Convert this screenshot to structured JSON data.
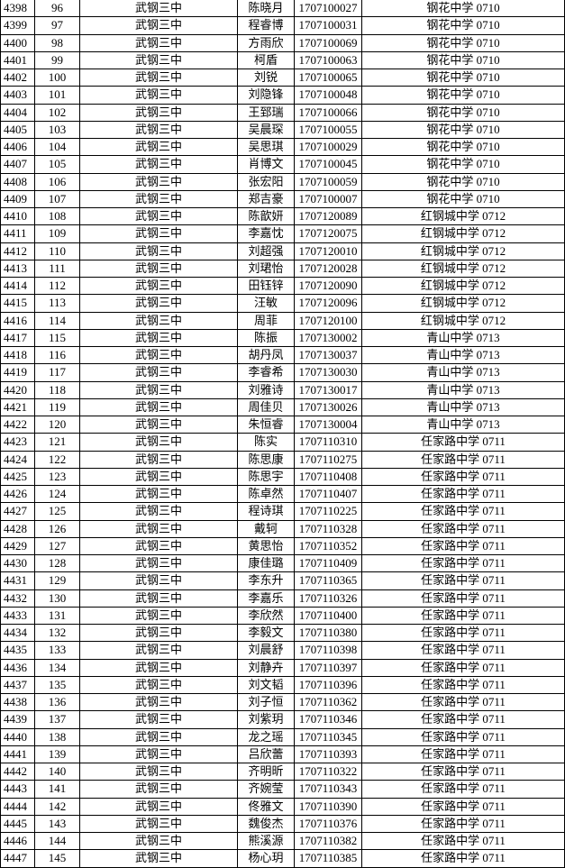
{
  "table": {
    "rows": [
      [
        "4398",
        "96",
        "武钢三中",
        "陈晓月",
        "1707100027",
        "钢花中学 0710"
      ],
      [
        "4399",
        "97",
        "武钢三中",
        "程睿博",
        "1707100031",
        "钢花中学 0710"
      ],
      [
        "4400",
        "98",
        "武钢三中",
        "方雨欣",
        "1707100069",
        "钢花中学 0710"
      ],
      [
        "4401",
        "99",
        "武钢三中",
        "柯盾",
        "1707100063",
        "钢花中学 0710"
      ],
      [
        "4402",
        "100",
        "武钢三中",
        "刘锐",
        "1707100065",
        "钢花中学 0710"
      ],
      [
        "4403",
        "101",
        "武钢三中",
        "刘隐锋",
        "1707100048",
        "钢花中学 0710"
      ],
      [
        "4404",
        "102",
        "武钢三中",
        "王郅瑞",
        "1707100066",
        "钢花中学 0710"
      ],
      [
        "4405",
        "103",
        "武钢三中",
        "吴晨琛",
        "1707100055",
        "钢花中学 0710"
      ],
      [
        "4406",
        "104",
        "武钢三中",
        "吴思琪",
        "1707100029",
        "钢花中学 0710"
      ],
      [
        "4407",
        "105",
        "武钢三中",
        "肖博文",
        "1707100045",
        "钢花中学 0710"
      ],
      [
        "4408",
        "106",
        "武钢三中",
        "张宏阳",
        "1707100059",
        "钢花中学 0710"
      ],
      [
        "4409",
        "107",
        "武钢三中",
        "郑吉豪",
        "1707100007",
        "钢花中学 0710"
      ],
      [
        "4410",
        "108",
        "武钢三中",
        "陈歆妍",
        "1707120089",
        "红钢城中学 0712"
      ],
      [
        "4411",
        "109",
        "武钢三中",
        "李嘉忱",
        "1707120075",
        "红钢城中学 0712"
      ],
      [
        "4412",
        "110",
        "武钢三中",
        "刘超强",
        "1707120010",
        "红钢城中学 0712"
      ],
      [
        "4413",
        "111",
        "武钢三中",
        "刘珺怡",
        "1707120028",
        "红钢城中学 0712"
      ],
      [
        "4414",
        "112",
        "武钢三中",
        "田钰锌",
        "1707120090",
        "红钢城中学 0712"
      ],
      [
        "4415",
        "113",
        "武钢三中",
        "汪敏",
        "1707120096",
        "红钢城中学 0712"
      ],
      [
        "4416",
        "114",
        "武钢三中",
        "周菲",
        "1707120100",
        "红钢城中学 0712"
      ],
      [
        "4417",
        "115",
        "武钢三中",
        "陈振",
        "1707130002",
        "青山中学 0713"
      ],
      [
        "4418",
        "116",
        "武钢三中",
        "胡丹凤",
        "1707130037",
        "青山中学 0713"
      ],
      [
        "4419",
        "117",
        "武钢三中",
        "李睿希",
        "1707130030",
        "青山中学 0713"
      ],
      [
        "4420",
        "118",
        "武钢三中",
        "刘雅诗",
        "1707130017",
        "青山中学 0713"
      ],
      [
        "4421",
        "119",
        "武钢三中",
        "周佳贝",
        "1707130026",
        "青山中学 0713"
      ],
      [
        "4422",
        "120",
        "武钢三中",
        "朱恒睿",
        "1707130004",
        "青山中学 0713"
      ],
      [
        "4423",
        "121",
        "武钢三中",
        "陈实",
        "1707110310",
        "任家路中学 0711"
      ],
      [
        "4424",
        "122",
        "武钢三中",
        "陈思康",
        "1707110275",
        "任家路中学 0711"
      ],
      [
        "4425",
        "123",
        "武钢三中",
        "陈思宇",
        "1707110408",
        "任家路中学 0711"
      ],
      [
        "4426",
        "124",
        "武钢三中",
        "陈卓然",
        "1707110407",
        "任家路中学 0711"
      ],
      [
        "4427",
        "125",
        "武钢三中",
        "程诗琪",
        "1707110225",
        "任家路中学 0711"
      ],
      [
        "4428",
        "126",
        "武钢三中",
        "戴轲",
        "1707110328",
        "任家路中学 0711"
      ],
      [
        "4429",
        "127",
        "武钢三中",
        "黄思怡",
        "1707110352",
        "任家路中学 0711"
      ],
      [
        "4430",
        "128",
        "武钢三中",
        "康佳璐",
        "1707110409",
        "任家路中学 0711"
      ],
      [
        "4431",
        "129",
        "武钢三中",
        "李东升",
        "1707110365",
        "任家路中学 0711"
      ],
      [
        "4432",
        "130",
        "武钢三中",
        "李嘉乐",
        "1707110326",
        "任家路中学 0711"
      ],
      [
        "4433",
        "131",
        "武钢三中",
        "李欣然",
        "1707110400",
        "任家路中学 0711"
      ],
      [
        "4434",
        "132",
        "武钢三中",
        "李毅文",
        "1707110380",
        "任家路中学 0711"
      ],
      [
        "4435",
        "133",
        "武钢三中",
        "刘晨舒",
        "1707110398",
        "任家路中学 0711"
      ],
      [
        "4436",
        "134",
        "武钢三中",
        "刘静卉",
        "1707110397",
        "任家路中学 0711"
      ],
      [
        "4437",
        "135",
        "武钢三中",
        "刘文韬",
        "1707110396",
        "任家路中学 0711"
      ],
      [
        "4438",
        "136",
        "武钢三中",
        "刘子恒",
        "1707110362",
        "任家路中学 0711"
      ],
      [
        "4439",
        "137",
        "武钢三中",
        "刘紫玥",
        "1707110346",
        "任家路中学 0711"
      ],
      [
        "4440",
        "138",
        "武钢三中",
        "龙之瑶",
        "1707110345",
        "任家路中学 0711"
      ],
      [
        "4441",
        "139",
        "武钢三中",
        "吕欣蕾",
        "1707110393",
        "任家路中学 0711"
      ],
      [
        "4442",
        "140",
        "武钢三中",
        "齐明昕",
        "1707110322",
        "任家路中学 0711"
      ],
      [
        "4443",
        "141",
        "武钢三中",
        "齐婉莹",
        "1707110343",
        "任家路中学 0711"
      ],
      [
        "4444",
        "142",
        "武钢三中",
        "佟雅文",
        "1707110390",
        "任家路中学 0711"
      ],
      [
        "4445",
        "143",
        "武钢三中",
        "魏俊杰",
        "1707110376",
        "任家路中学 0711"
      ],
      [
        "4446",
        "144",
        "武钢三中",
        "熊溪源",
        "1707110382",
        "任家路中学 0711"
      ],
      [
        "4447",
        "145",
        "武钢三中",
        "杨心玥",
        "1707110385",
        "任家路中学 0711"
      ]
    ]
  }
}
